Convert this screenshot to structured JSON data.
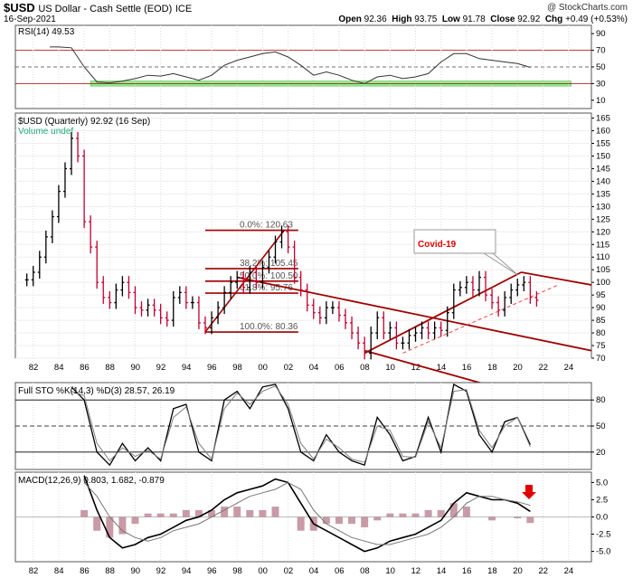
{
  "header": {
    "symbol": "$USD",
    "description": "US Dollar - Cash Settle (EOD)",
    "exchange": "ICE",
    "date": "16-Sep-2021",
    "copyright": "@ StockCharts.com",
    "open_label": "Open",
    "open": "92.36",
    "high_label": "High",
    "high": "93.75",
    "low_label": "Low",
    "low": "91.78",
    "close_label": "Close",
    "close": "92.92",
    "chg_label": "Chg",
    "chg": "+0.49 (+0.53%)"
  },
  "chart_data": [
    {
      "type": "line",
      "panel": "rsi",
      "title": "RSI(14) 49.53",
      "y_ticks": [
        10,
        30,
        50,
        70,
        90
      ],
      "reference_lines": [
        30,
        70
      ],
      "ylim": [
        0,
        100
      ],
      "x": [
        1983.3,
        1984,
        1985,
        1986,
        1987,
        1988,
        1989,
        1990,
        1991,
        1992,
        1993,
        1994,
        1995,
        1996,
        1997,
        1998,
        1999,
        2000,
        2001,
        2002,
        2003,
        2004,
        2005,
        2006,
        2007,
        2008,
        2009,
        2010,
        2011,
        2012,
        2013,
        2014,
        2015,
        2016,
        2017,
        2018,
        2019,
        2020,
        2021
      ],
      "values": [
        74,
        74,
        73,
        50,
        32,
        31,
        33,
        36,
        40,
        39,
        42,
        38,
        34,
        40,
        52,
        58,
        62,
        66,
        68,
        62,
        52,
        40,
        44,
        40,
        34,
        30,
        38,
        40,
        36,
        38,
        42,
        56,
        66,
        66,
        60,
        58,
        56,
        54,
        49.5
      ]
    },
    {
      "type": "bar",
      "panel": "price",
      "title": "$USD (Quarterly) 92.92 (16 Sep)",
      "legend": [
        "Volume undef"
      ],
      "y_ticks": [
        70,
        75,
        80,
        85,
        90,
        95,
        100,
        105,
        110,
        115,
        120,
        125,
        130,
        135,
        140,
        145,
        150,
        155,
        160,
        165
      ],
      "ylim": [
        70,
        167
      ],
      "x_ticks": [
        "82",
        "84",
        "86",
        "88",
        "90",
        "92",
        "94",
        "96",
        "98",
        "00",
        "02",
        "04",
        "06",
        "08",
        "10",
        "12",
        "14",
        "16",
        "18",
        "20",
        "22",
        "24"
      ],
      "x": [
        1981.5,
        1982,
        1982.5,
        1983,
        1983.5,
        1984,
        1984.5,
        1985,
        1985.5,
        1986,
        1986.5,
        1987,
        1987.5,
        1988,
        1988.5,
        1989,
        1989.5,
        1990,
        1990.5,
        1991,
        1991.5,
        1992,
        1992.5,
        1993,
        1993.5,
        1994,
        1994.5,
        1995,
        1995.5,
        1996,
        1996.5,
        1997,
        1997.5,
        1998,
        1998.5,
        1999,
        1999.5,
        2000,
        2000.5,
        2001,
        2001.5,
        2002,
        2002.5,
        2003,
        2003.5,
        2004,
        2004.5,
        2005,
        2005.5,
        2006,
        2006.5,
        2007,
        2007.5,
        2008,
        2008.5,
        2009,
        2009.5,
        2010,
        2010.5,
        2011,
        2011.5,
        2012,
        2012.5,
        2013,
        2013.5,
        2014,
        2014.5,
        2015,
        2015.5,
        2016,
        2016.5,
        2017,
        2017.5,
        2018,
        2018.5,
        2019,
        2019.5,
        2020,
        2020.5,
        2021,
        2021.5
      ],
      "values": [
        101,
        104,
        110,
        118,
        126,
        136,
        145,
        157,
        150,
        124,
        114,
        100,
        94,
        92,
        97,
        100,
        96,
        90,
        89,
        91,
        89,
        86,
        85,
        94,
        96,
        92,
        92,
        84,
        82,
        86,
        90,
        96,
        100,
        102,
        98,
        104,
        100,
        106,
        110,
        116,
        120,
        114,
        102,
        97,
        91,
        88,
        86,
        90,
        90,
        87,
        84,
        80,
        76,
        72,
        80,
        86,
        80,
        82,
        76,
        76,
        79,
        80,
        82,
        80,
        82,
        81,
        88,
        97,
        98,
        100,
        97,
        102,
        95,
        92,
        89,
        94,
        97,
        99,
        100,
        94,
        92.92
      ],
      "fib_levels": [
        {
          "label": "0.0%: 120.63",
          "value": 120.63
        },
        {
          "label": "38.2%: 105.45",
          "value": 105.45
        },
        {
          "label": "50.0%: 100.50",
          "value": 100.5
        },
        {
          "label": "61.8%: 95.76",
          "value": 95.76
        },
        {
          "label": "100.0%: 80.36",
          "value": 80.36
        }
      ],
      "annotations": [
        {
          "label": "Covid-19",
          "x": 2020,
          "y": 103
        }
      ]
    },
    {
      "type": "line",
      "panel": "stochastic",
      "title": "Full STO %K(14,3) %D(3) 28.57, 26.19",
      "y_ticks": [
        20,
        50,
        80
      ],
      "reference_lines": [
        20,
        50,
        80
      ],
      "ylim": [
        0,
        100
      ],
      "x": [
        1985,
        1986,
        1987,
        1988,
        1989,
        1990,
        1991,
        1992,
        1993,
        1994,
        1995,
        1996,
        1997,
        1998,
        1999,
        2000,
        2001,
        2002,
        2003,
        2004,
        2005,
        2006,
        2007,
        2008,
        2009,
        2010,
        2011,
        2012,
        2013,
        2014,
        2015,
        2016,
        2017,
        2018,
        2019,
        2020,
        2021
      ],
      "series": [
        {
          "name": "%K",
          "values": [
            95,
            80,
            20,
            5,
            30,
            10,
            25,
            10,
            70,
            75,
            20,
            10,
            80,
            90,
            70,
            95,
            98,
            70,
            20,
            10,
            40,
            20,
            10,
            5,
            60,
            40,
            10,
            15,
            60,
            20,
            98,
            90,
            40,
            20,
            55,
            60,
            28.57
          ]
        },
        {
          "name": "%D",
          "values": [
            90,
            85,
            30,
            10,
            25,
            15,
            22,
            12,
            60,
            72,
            30,
            12,
            70,
            88,
            75,
            90,
            96,
            75,
            30,
            12,
            35,
            25,
            12,
            8,
            50,
            45,
            15,
            14,
            55,
            25,
            90,
            92,
            45,
            25,
            50,
            60,
            26.19
          ]
        }
      ]
    },
    {
      "type": "line",
      "panel": "macd",
      "title": "MACD(12,26,9) 0.803, 1.682, -0.879",
      "y_ticks": [
        -5.0,
        -2.5,
        0.0,
        2.5,
        5.0
      ],
      "ylim": [
        -6.5,
        6.5
      ],
      "x_ticks": [
        "82",
        "84",
        "86",
        "88",
        "90",
        "92",
        "94",
        "96",
        "98",
        "00",
        "02",
        "04",
        "06",
        "08",
        "10",
        "12",
        "14",
        "16",
        "18",
        "20",
        "22",
        "24"
      ],
      "x": [
        1986,
        1987,
        1988,
        1989,
        1990,
        1991,
        1992,
        1993,
        1994,
        1995,
        1996,
        1997,
        1998,
        1999,
        2000,
        2001,
        2002,
        2003,
        2004,
        2005,
        2006,
        2007,
        2008,
        2009,
        2010,
        2011,
        2012,
        2013,
        2014,
        2015,
        2016,
        2017,
        2018,
        2019,
        2020,
        2021
      ],
      "series": [
        {
          "name": "MACD",
          "values": [
            6,
            1,
            -3,
            -4.5,
            -4,
            -3,
            -2.5,
            -1.5,
            -0.5,
            0,
            1,
            2.5,
            3.5,
            4,
            4.5,
            5.5,
            5,
            2,
            -1,
            -2,
            -3,
            -4,
            -5,
            -4.5,
            -3.5,
            -3,
            -2.5,
            -1.5,
            -0.5,
            2,
            3.5,
            3,
            2.5,
            2.5,
            2,
            0.803
          ]
        },
        {
          "name": "Signal",
          "values": [
            5,
            3,
            0,
            -2,
            -3,
            -3.5,
            -3,
            -2,
            -1.5,
            -1,
            0,
            1,
            2,
            3,
            3.5,
            4,
            5,
            4,
            1,
            -1,
            -2,
            -3,
            -3.5,
            -4,
            -4,
            -3.5,
            -3,
            -2.5,
            -1.5,
            0,
            2,
            3,
            3,
            2.5,
            2.2,
            1.682
          ]
        },
        {
          "name": "Histogram",
          "values": [
            1,
            -2,
            -3,
            -2.5,
            -1,
            0.5,
            0.5,
            0.5,
            1,
            1,
            1,
            1.5,
            1.5,
            1,
            1,
            1.5,
            0,
            -2,
            -2,
            -1,
            -1,
            -1,
            -1.5,
            -0.5,
            0.5,
            0.5,
            0.5,
            1,
            1,
            2,
            1.5,
            0,
            -0.5,
            0,
            -0.2,
            -0.879
          ]
        }
      ]
    }
  ],
  "colors": {
    "price_up": "#000000",
    "price_down": "#c00030",
    "trendline": "#a00000",
    "rsi_band": "#90ee90",
    "stoch_k": "#000000",
    "stoch_d": "#808080",
    "macd_hist": "#b07080",
    "annotation_text": "#e00000",
    "arrow": "#e00000"
  }
}
